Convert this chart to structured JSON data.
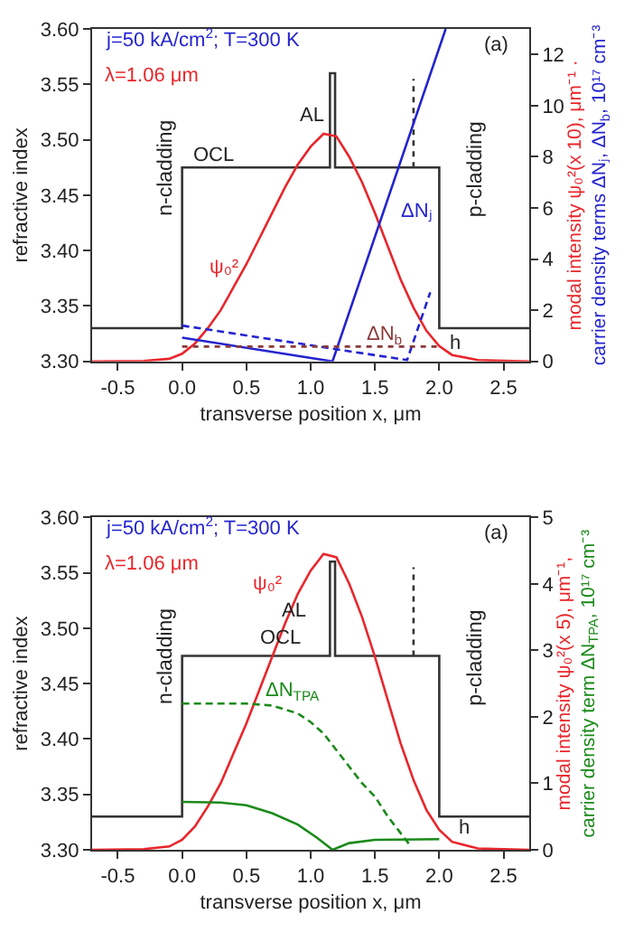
{
  "chart_data": [
    {
      "type": "line",
      "xlabel": "transverse position x, μm",
      "ylabel": "refractive index",
      "y2label": "modal intensity ψ₀²(x 10), μm⁻¹ ·\ncarrier density terms ΔNⱼ, ΔN$_{b}$, 10¹⁷ cm⁻³",
      "xlim": [
        -0.7,
        2.7
      ],
      "xticks": [
        {
          "value": -0.5,
          "label": "-0.5"
        },
        {
          "value": 0,
          "label": "0.0"
        },
        {
          "value": 0.5,
          "label": "0.5"
        },
        {
          "value": 1,
          "label": "1.0"
        },
        {
          "value": 1.5,
          "label": "1.5"
        },
        {
          "value": 2,
          "label": "2.0"
        },
        {
          "value": 2.5,
          "label": "2.5"
        }
      ],
      "ylim": [
        3.3,
        3.6
      ],
      "yticks": [
        {
          "value": 3.3,
          "label": "3.30"
        },
        {
          "value": 3.35,
          "label": "3.35"
        },
        {
          "value": 3.4,
          "label": "3.40"
        },
        {
          "value": 3.45,
          "label": "3.45"
        },
        {
          "value": 3.5,
          "label": "3.50"
        },
        {
          "value": 3.55,
          "label": "3.55"
        },
        {
          "value": 3.6,
          "label": "3.60"
        }
      ],
      "y2lim": [
        0,
        13
      ],
      "y2ticks": [
        0,
        2,
        4,
        6,
        8,
        10,
        12
      ],
      "marker": "none",
      "annotations": [
        "j=50 kA/cm$^{2}$; T=300 K",
        "λ=1.06 μm",
        "(a)",
        "n-cladding",
        "p-cladding",
        "AL",
        "OCL",
        "ψ₀²",
        "ΔNⱼ",
        "ΔN$_{b}$",
        "h"
      ],
      "series": [
        {
          "color": "#333333",
          "line_style": "solid",
          "x": [
            -0.7,
            0,
            0,
            1.15,
            1.15,
            1.19,
            1.19,
            2.0,
            2.0,
            2.7
          ],
          "values": [
            3.33,
            3.33,
            3.475,
            3.475,
            3.56,
            3.56,
            3.475,
            3.475,
            3.33,
            3.33
          ]
        },
        {
          "color": "#333333",
          "line_style": "dotted",
          "x": [
            1.8,
            1.8
          ],
          "values": [
            3.475,
            3.555
          ]
        },
        {
          "color": "#e8262b",
          "axis": "y2",
          "line_style": "solid",
          "x": [
            -0.7,
            -0.3,
            -0.1,
            0,
            0.1,
            0.2,
            0.3,
            0.4,
            0.5,
            0.6,
            0.7,
            0.8,
            0.9,
            1.0,
            1.1,
            1.2,
            1.3,
            1.4,
            1.5,
            1.6,
            1.7,
            1.8,
            1.9,
            2.0,
            2.1,
            2.3,
            2.7
          ],
          "values": [
            0,
            0.02,
            0.1,
            0.3,
            0.7,
            1.3,
            2.0,
            2.9,
            3.8,
            4.8,
            5.8,
            6.8,
            7.7,
            8.4,
            8.9,
            8.8,
            8.0,
            7.0,
            5.8,
            4.5,
            3.2,
            2.1,
            1.2,
            0.6,
            0.25,
            0.05,
            0
          ]
        },
        {
          "color": "#2424d0",
          "axis": "y2",
          "line_style": "solid",
          "x": [
            0,
            1.17,
            2.05
          ],
          "values": [
            0.93,
            0,
            13
          ]
        },
        {
          "color": "#2424d0",
          "axis": "y2",
          "line_style": "dashed",
          "x": [
            0,
            1.75,
            1.93
          ],
          "values": [
            1.4,
            0.05,
            2.7
          ]
        },
        {
          "color": "#8b3a3a",
          "axis": "y2",
          "line_style": "dotted",
          "x": [
            0,
            2.0
          ],
          "values": [
            0.58,
            0.58
          ]
        }
      ]
    },
    {
      "type": "line",
      "xlabel": "transverse position x, μm",
      "ylabel": "refractive index",
      "y2label": "modal intensity ψ₀²(x 5), μm⁻¹,\ncarrier density term ΔN$_{TPA}$, 10¹⁷ cm⁻³",
      "xlim": [
        -0.7,
        2.7
      ],
      "xticks": [
        {
          "value": -0.5,
          "label": "-0.5"
        },
        {
          "value": 0,
          "label": "0.0"
        },
        {
          "value": 0.5,
          "label": "0.5"
        },
        {
          "value": 1,
          "label": "1.0"
        },
        {
          "value": 1.5,
          "label": "1.5"
        },
        {
          "value": 2,
          "label": "2.0"
        },
        {
          "value": 2.5,
          "label": "2.5"
        }
      ],
      "ylim": [
        3.3,
        3.6
      ],
      "yticks": [
        {
          "value": 3.3,
          "label": "3.30"
        },
        {
          "value": 3.35,
          "label": "3.35"
        },
        {
          "value": 3.4,
          "label": "3.40"
        },
        {
          "value": 3.45,
          "label": "3.45"
        },
        {
          "value": 3.5,
          "label": "3.50"
        },
        {
          "value": 3.55,
          "label": "3.55"
        },
        {
          "value": 3.6,
          "label": "3.60"
        }
      ],
      "y2lim": [
        0,
        5
      ],
      "y2ticks": [
        0,
        1,
        2,
        3,
        4,
        5
      ],
      "marker": "none",
      "annotations": [
        "j=50 kA/cm$^{2}$; T=300 K",
        "λ=1.06 μm",
        "(a)",
        "n-cladding",
        "p-cladding",
        "ψ₀²",
        "AL",
        "OCL",
        "ΔN$_{TPA}$",
        "h"
      ],
      "series": [
        {
          "color": "#333333",
          "line_style": "solid",
          "x": [
            -0.7,
            0,
            0,
            1.15,
            1.15,
            1.19,
            1.19,
            2.0,
            2.0,
            2.7
          ],
          "values": [
            3.33,
            3.33,
            3.475,
            3.475,
            3.56,
            3.56,
            3.475,
            3.475,
            3.33,
            3.33
          ]
        },
        {
          "color": "#333333",
          "line_style": "dotted",
          "x": [
            1.8,
            1.8
          ],
          "values": [
            3.475,
            3.555
          ]
        },
        {
          "color": "#e8262b",
          "axis": "y2",
          "line_style": "solid",
          "x": [
            -0.7,
            -0.3,
            -0.1,
            0,
            0.1,
            0.2,
            0.3,
            0.4,
            0.5,
            0.6,
            0.7,
            0.8,
            0.9,
            1.0,
            1.1,
            1.2,
            1.3,
            1.4,
            1.5,
            1.6,
            1.7,
            1.8,
            1.9,
            2.0,
            2.1,
            2.3,
            2.7
          ],
          "values": [
            0,
            0.01,
            0.05,
            0.15,
            0.35,
            0.65,
            1.0,
            1.45,
            1.9,
            2.4,
            2.9,
            3.4,
            3.85,
            4.2,
            4.45,
            4.4,
            4.0,
            3.5,
            2.9,
            2.25,
            1.6,
            1.05,
            0.6,
            0.3,
            0.12,
            0.02,
            0
          ]
        },
        {
          "color": "#1a8a1a",
          "axis": "y2",
          "line_style": "dashed",
          "x": [
            0,
            0.5,
            0.7,
            0.9,
            1.0,
            1.1,
            1.2,
            1.3,
            1.4,
            1.5,
            1.6,
            1.7,
            1.78
          ],
          "values": [
            2.2,
            2.2,
            2.17,
            2.05,
            1.92,
            1.75,
            1.5,
            1.25,
            1.0,
            0.8,
            0.5,
            0.25,
            0.05
          ]
        },
        {
          "color": "#1a8a1a",
          "axis": "y2",
          "line_style": "solid",
          "x": [
            0,
            0.3,
            0.5,
            0.7,
            0.9,
            1.05,
            1.17,
            1.3,
            1.5,
            2.0
          ],
          "values": [
            0.72,
            0.71,
            0.67,
            0.55,
            0.38,
            0.18,
            0,
            0.1,
            0.15,
            0.16
          ]
        }
      ]
    }
  ]
}
